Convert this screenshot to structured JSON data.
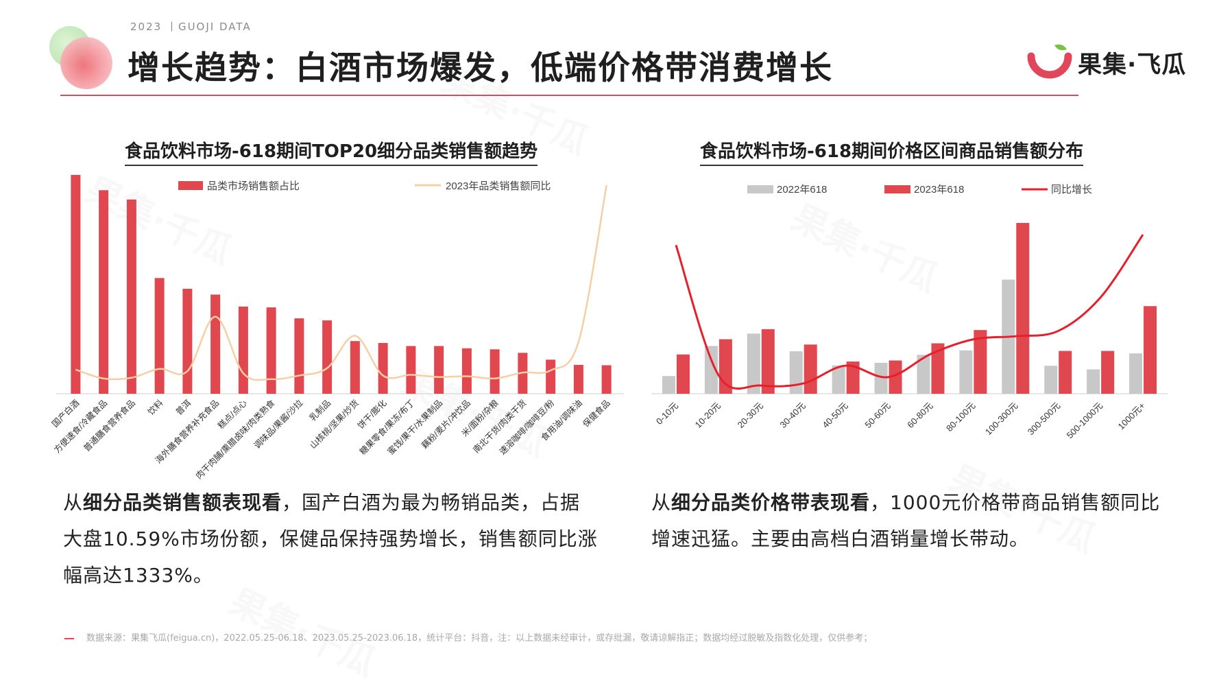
{
  "header": {
    "year_tag": "2023 丨GUOJI DATA",
    "title": "增长趋势：白酒市场爆发，低端价格带消费增长",
    "logo_text": "果集·飞瓜"
  },
  "watermark": "果集·千瓜",
  "colors": {
    "accent": "#e0475a",
    "bar_red": "#e0474f",
    "bar_gray": "#c8c8c8",
    "line_peach": "#f5cfa5",
    "line_red": "#e61f2b"
  },
  "chart_data": [
    {
      "type": "bar",
      "title": "食品饮料市场-618期间TOP20细分品类销售额趋势",
      "categories": [
        "国产白酒",
        "方便速食/冷藏食品",
        "普通膳食营养食品",
        "饮料",
        "普洱",
        "海外膳食营养补充食品",
        "糕点/点心",
        "肉干肉脯/熏腊卤味/肉类熟食",
        "调味品/果酱/沙拉",
        "乳制品",
        "山核桃/坚果/炒货",
        "饼干/膨化",
        "糖果零食/果冻/布丁",
        "蜜饯/果干/水果制品",
        "藕粉/麦片/冲饮品",
        "米/面粉/杂粮",
        "南北干货/肉类干货",
        "速溶咖啡/咖啡豆/粉",
        "食用油/调味油",
        "保健食品"
      ],
      "series": [
        {
          "name": "品类市场销售额占比",
          "values": [
            10.59,
            9.85,
            9.4,
            5.6,
            5.08,
            4.8,
            4.22,
            4.18,
            3.65,
            3.55,
            2.55,
            2.46,
            2.31,
            2.31,
            2.2,
            2.15,
            1.98,
            1.65,
            1.4,
            1.38
          ]
        },
        {
          "name": "2023年品类销售额同比",
          "values": [
            80,
            20,
            25,
            85,
            70,
            440,
            55,
            15,
            40,
            90,
            310,
            40,
            45,
            30,
            35,
            20,
            60,
            75,
            270,
            1333
          ]
        }
      ],
      "legend": "top",
      "grid": false
    },
    {
      "type": "bar",
      "title": "食品饮料市场-618期间价格区间商品销售额分布",
      "categories": [
        "0-10元",
        "10-20元",
        "20-30元",
        "30-40元",
        "40-50元",
        "50-60元",
        "60-80元",
        "80-100元",
        "100-300元",
        "300-500元",
        "500-1000元",
        "1000元+"
      ],
      "series": [
        {
          "name": "2022年618",
          "values": [
            1.0,
            2.7,
            3.4,
            2.4,
            1.6,
            1.75,
            2.2,
            2.45,
            6.45,
            1.58,
            1.38,
            2.28
          ]
        },
        {
          "name": "2023年618",
          "values": [
            2.22,
            3.08,
            3.65,
            2.78,
            1.82,
            1.88,
            2.85,
            3.6,
            9.65,
            2.42,
            2.42,
            4.95
          ]
        },
        {
          "name": "同比增长",
          "values": [
            130,
            6,
            -4,
            -2,
            15,
            4,
            26,
            40,
            43,
            48,
            80,
            140
          ]
        }
      ],
      "legend": "top",
      "grid": false
    }
  ],
  "para1": {
    "p1": "从",
    "b1": "细分品类销售额表现看",
    "p2": "，国产白酒为最为畅销品类，占据大盘10.59%市场份额，保健品保持强势增长，销售额同比涨幅高达1333%。"
  },
  "para2": {
    "p1": "从",
    "b1": "细分品类价格带表现看",
    "p2": "，1000元价格带商品销售额同比增速迅猛。主要由高档白酒销量增长带动。"
  },
  "footer": "数据来源：果集飞瓜(feigua.cn)，2022.05.25-06.18、2023.05.25-2023.06.18，统计平台：抖音，注：以上数据未经审计，或存纰漏，敬请谅解指正；数据均经过脱敏及指数化处理，仅供参考；"
}
